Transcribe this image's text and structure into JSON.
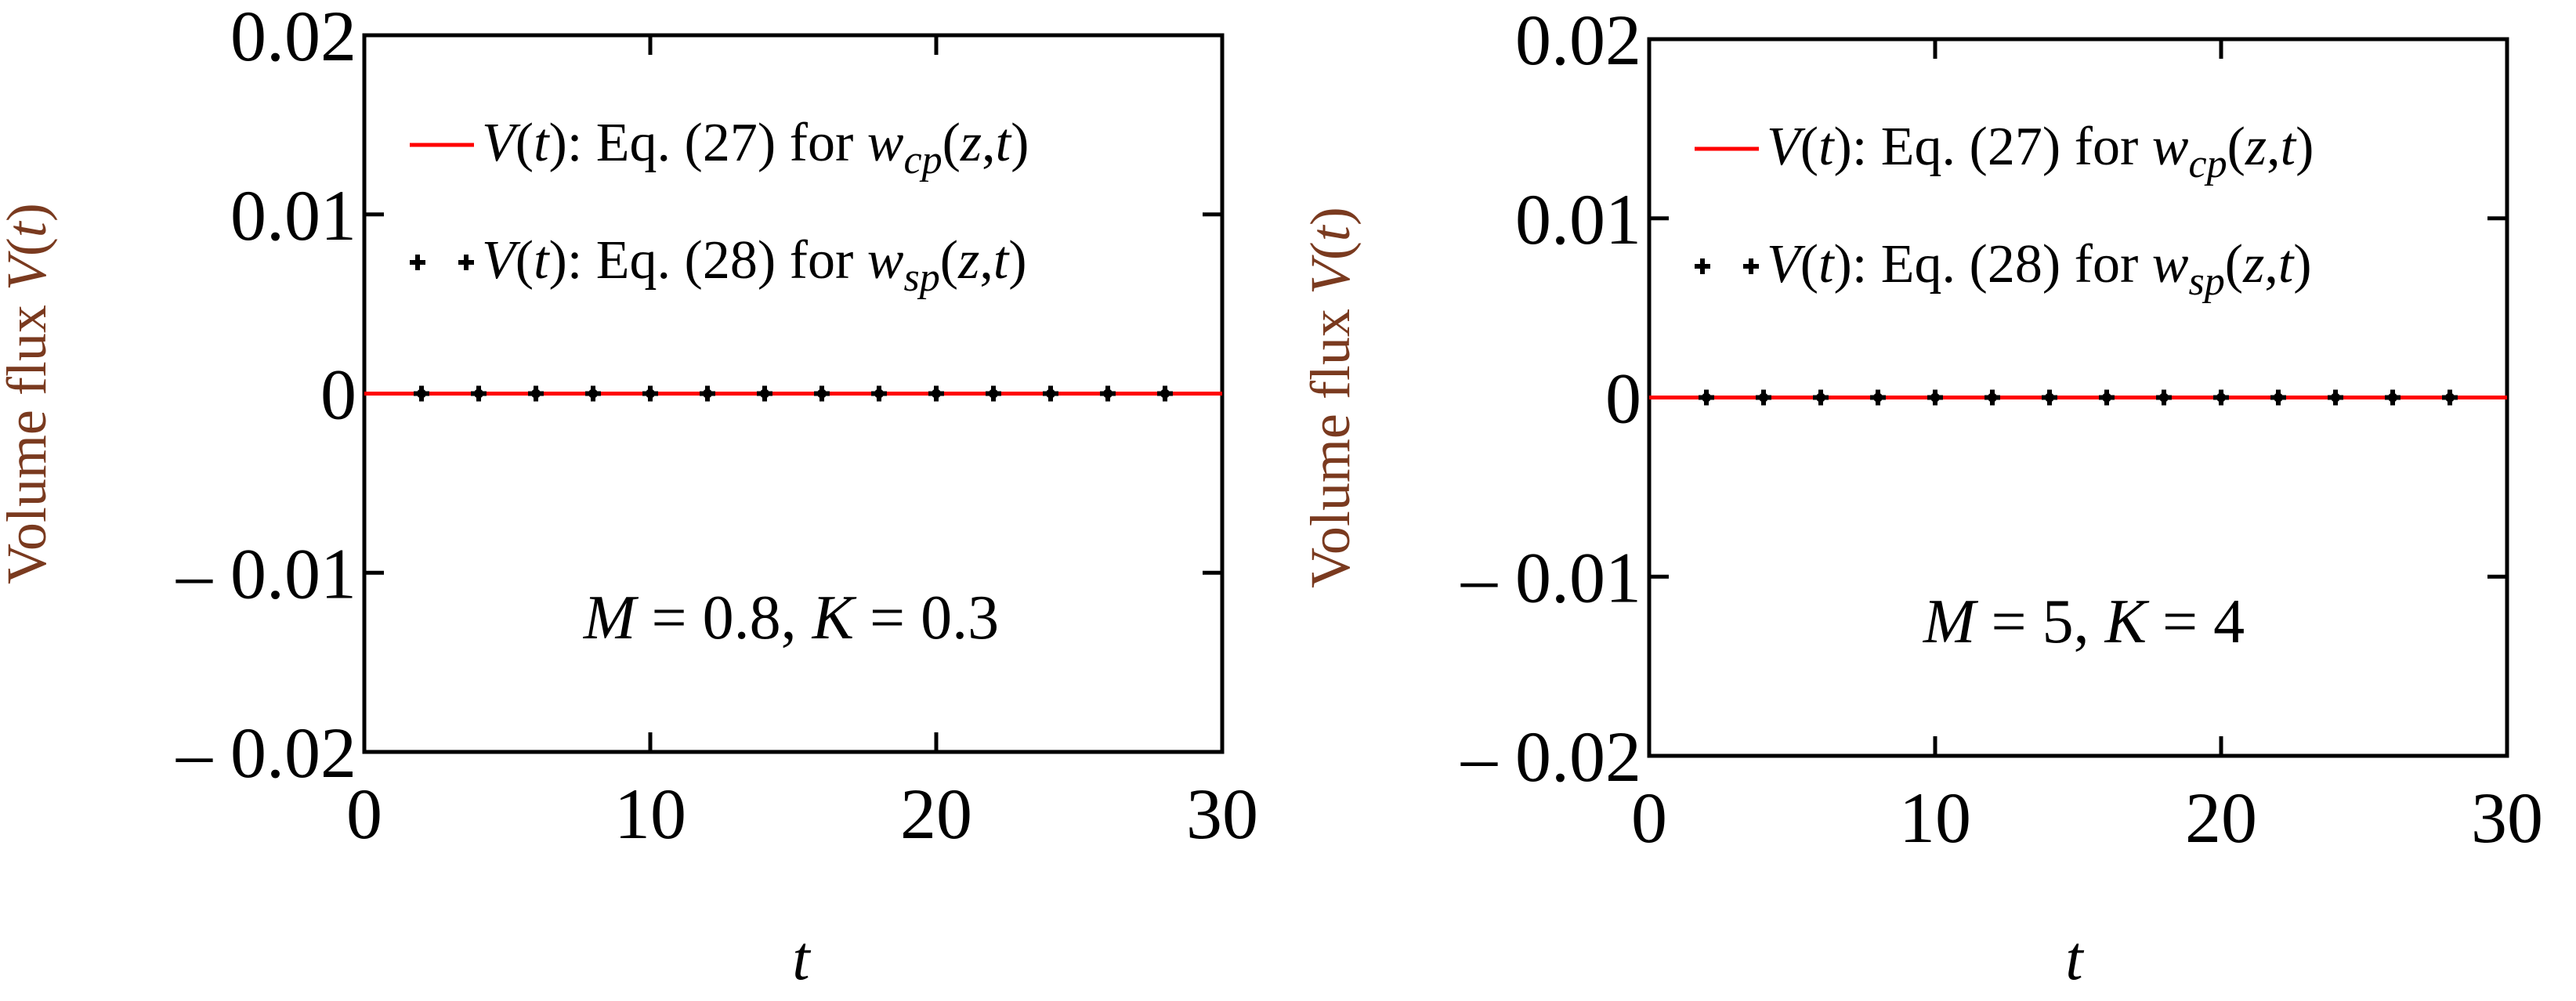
{
  "chart_data": [
    {
      "type": "line",
      "xlabel": "t",
      "ylabel": "Volume flux V(t)",
      "xlim": [
        0,
        30
      ],
      "ylim": [
        -0.02,
        0.02
      ],
      "xticks": [
        "0",
        "10",
        "20",
        "30"
      ],
      "yticks": [
        "0.02",
        "0.01",
        "0",
        "– 0.01",
        "– 0.02"
      ],
      "legend_position": "top-right",
      "annotation": "M = 0.8, K = 0.3",
      "series": [
        {
          "name": "V(t): Eq. (27) for w_cp(z,t)",
          "style": "line",
          "color": "#ff0000",
          "x": [
            0,
            30
          ],
          "y": [
            0,
            0
          ]
        },
        {
          "name": "V(t): Eq. (28) for w_sp(z,t)",
          "style": "markers",
          "color": "#000000",
          "x": [
            2,
            4,
            6,
            8,
            10,
            12,
            14,
            16,
            18,
            20,
            22,
            24,
            26,
            28
          ],
          "y": [
            0,
            0,
            0,
            0,
            0,
            0,
            0,
            0,
            0,
            0,
            0,
            0,
            0,
            0
          ]
        }
      ]
    },
    {
      "type": "line",
      "xlabel": "t",
      "ylabel": "Volume flux V(t)",
      "xlim": [
        0,
        30
      ],
      "ylim": [
        -0.02,
        0.02
      ],
      "xticks": [
        "0",
        "10",
        "20",
        "30"
      ],
      "yticks": [
        "0.02",
        "0.01",
        "0",
        "– 0.01",
        "– 0.02"
      ],
      "legend_position": "top-right",
      "annotation": "M = 5, K = 4",
      "series": [
        {
          "name": "V(t): Eq. (27) for w_cp(z,t)",
          "style": "line",
          "color": "#ff0000",
          "x": [
            0,
            30
          ],
          "y": [
            0,
            0
          ]
        },
        {
          "name": "V(t): Eq. (28) for w_sp(z,t)",
          "style": "markers",
          "color": "#000000",
          "x": [
            2,
            4,
            6,
            8,
            10,
            12,
            14,
            16,
            18,
            20,
            22,
            24,
            26,
            28
          ],
          "y": [
            0,
            0,
            0,
            0,
            0,
            0,
            0,
            0,
            0,
            0,
            0,
            0,
            0,
            0
          ]
        }
      ]
    }
  ]
}
